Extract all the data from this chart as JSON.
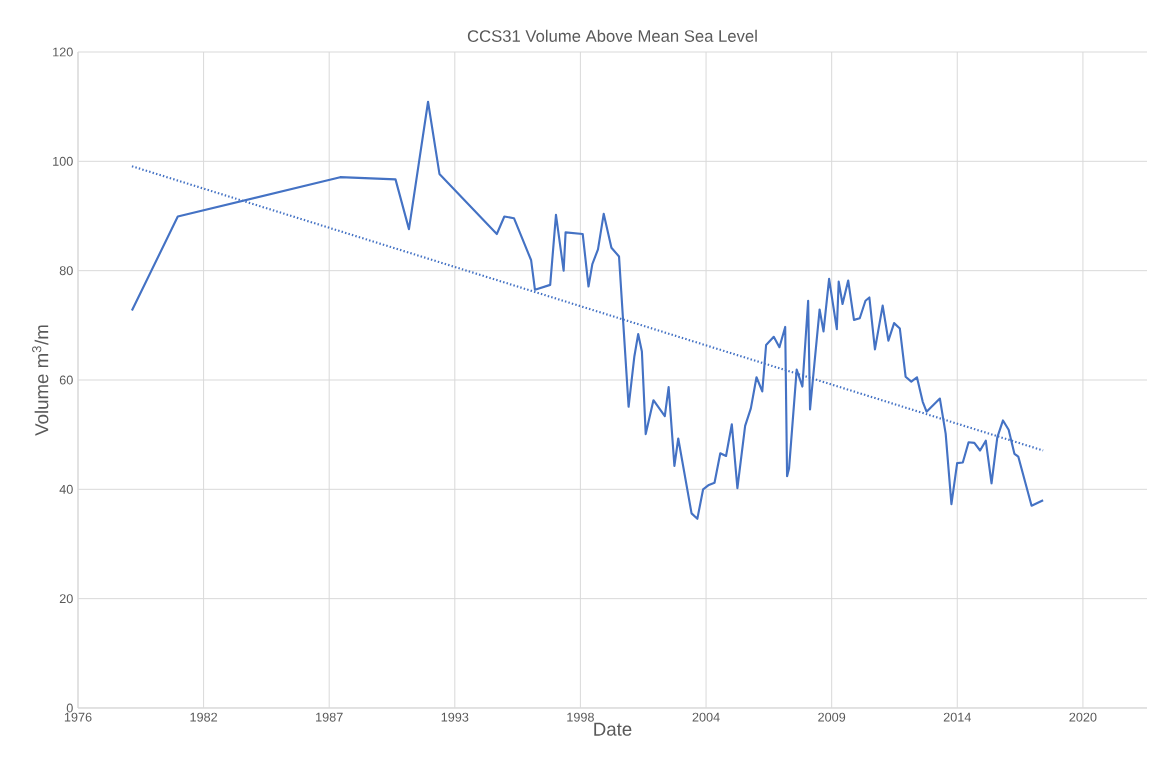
{
  "chart_data": {
    "type": "line",
    "title": "CCS31 Volume Above Mean Sea Level",
    "xlabel": "Date",
    "ylabel": "Volume m$^{3}$/m",
    "xlim": [
      "1976-08-08",
      "2023-03-28"
    ],
    "ylim": [
      0,
      120
    ],
    "xticks": [
      {
        "value": "1976-08-08",
        "label": "1976"
      },
      {
        "value": "1982-01-30",
        "label": "1982"
      },
      {
        "value": "1987-07-24",
        "label": "1987"
      },
      {
        "value": "1993-01-15",
        "label": "1993"
      },
      {
        "value": "1998-07-09",
        "label": "1998"
      },
      {
        "value": "2004-01-01",
        "label": "2004"
      },
      {
        "value": "2009-06-25",
        "label": "2009"
      },
      {
        "value": "2014-12-17",
        "label": "2014"
      },
      {
        "value": "2020-06-10",
        "label": "2020"
      }
    ],
    "yticks": [
      0,
      20,
      40,
      60,
      80,
      100,
      120
    ],
    "grid": true,
    "marker": "none",
    "series": [
      {
        "color": "#4472c4",
        "line_style": "solid",
        "x": [
          "1978-12",
          "1980-12",
          "1988-01",
          "1990-06",
          "1991-01",
          "1991-11",
          "1992-05",
          "1994-11",
          "1995-03",
          "1995-08",
          "1996-05",
          "1996-07",
          "1997-03",
          "1997-06",
          "1997-10",
          "1997-11",
          "1998-08",
          "1998-11",
          "1999-01",
          "1999-04",
          "1999-07",
          "1999-11",
          "2000-03",
          "2000-08",
          "2000-11",
          "2001-01",
          "2001-03",
          "2001-05",
          "2001-09",
          "2002-03",
          "2002-05",
          "2002-08",
          "2002-10",
          "2003-05",
          "2003-08",
          "2003-11",
          "2004-02",
          "2004-05",
          "2004-08",
          "2004-11",
          "2005-02",
          "2005-05",
          "2005-09",
          "2005-12",
          "2006-03",
          "2006-06",
          "2006-08",
          "2006-12",
          "2007-03",
          "2007-06",
          "2007-07",
          "2007-08",
          "2007-12",
          "2008-03",
          "2008-06",
          "2008-07",
          "2008-12",
          "2009-02",
          "2009-05",
          "2009-09",
          "2009-10",
          "2009-12",
          "2010-03",
          "2010-06",
          "2010-09",
          "2010-12",
          "2011-02",
          "2011-05",
          "2011-09",
          "2011-12",
          "2012-03",
          "2012-06",
          "2012-09",
          "2012-12",
          "2013-03",
          "2013-06",
          "2013-08",
          "2014-03",
          "2014-06",
          "2014-09",
          "2014-12",
          "2015-03",
          "2015-06",
          "2015-09",
          "2015-12",
          "2016-03",
          "2016-06",
          "2016-09",
          "2016-12",
          "2017-03",
          "2017-06",
          "2017-08",
          "2018-03",
          "2018-09"
        ],
        "values": [
          72.7,
          89.9,
          97.1,
          96.7,
          87.6,
          110.9,
          97.7,
          86.7,
          89.9,
          89.6,
          81.9,
          76.5,
          77.4,
          90.2,
          80.0,
          87.0,
          86.7,
          77.1,
          81.2,
          83.9,
          90.4,
          84.2,
          82.6,
          55.1,
          64.3,
          68.4,
          65.2,
          50.1,
          56.3,
          53.4,
          58.7,
          44.3,
          49.3,
          35.6,
          34.6,
          40.0,
          40.8,
          41.2,
          46.6,
          46.1,
          51.9,
          40.2,
          51.6,
          54.8,
          60.5,
          57.9,
          66.4,
          67.9,
          66.0,
          69.7,
          42.4,
          43.8,
          61.9,
          58.8,
          74.5,
          54.6,
          72.9,
          68.9,
          78.5,
          69.3,
          78.0,
          73.9,
          78.2,
          71.0,
          71.3,
          74.5,
          75.1,
          65.6,
          73.6,
          67.2,
          70.4,
          69.4,
          60.6,
          59.7,
          60.5,
          56.0,
          54.2,
          56.6,
          50.2,
          37.3,
          44.8,
          44.9,
          48.6,
          48.5,
          47.1,
          48.9,
          41.1,
          49.5,
          52.6,
          50.9,
          46.5,
          46.0,
          37.0,
          38.0
        ]
      },
      {
        "type": "line",
        "color": "#4472c4",
        "line_style": "dotted",
        "x": [
          "1978-12",
          "2018-09"
        ],
        "values": [
          99.1,
          47.1
        ]
      }
    ]
  }
}
